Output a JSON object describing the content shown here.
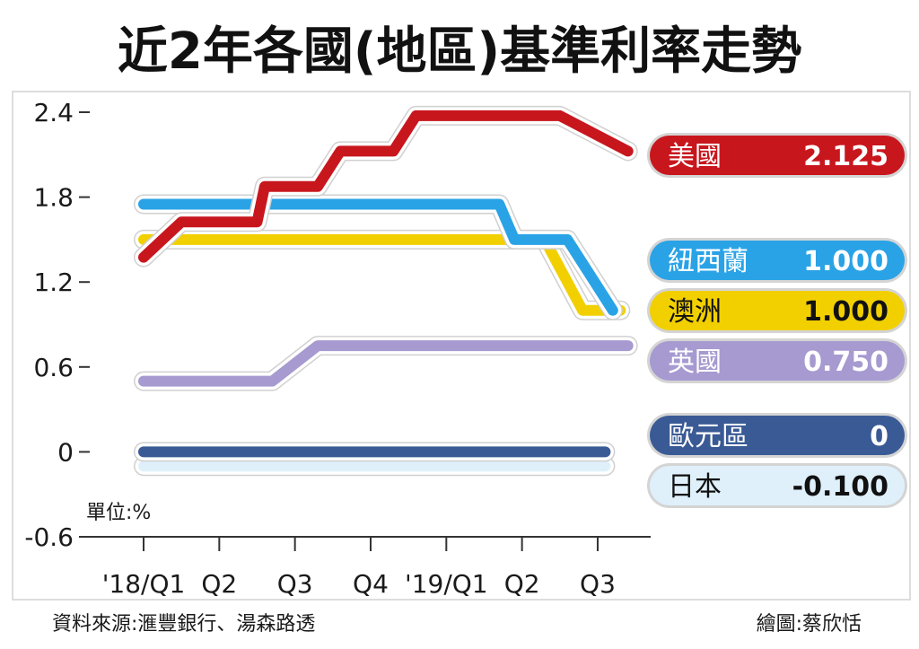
{
  "title": "近2年各國(地區)基準利率走勢",
  "unit_label": "單位:%",
  "source": "資料來源:滙豐銀行、湯森路透",
  "credit": "繪圖:蔡欣恬",
  "chart_data": {
    "type": "line",
    "title": "近2年各國(地區)基準利率走勢",
    "y_ticks": [
      "2.4",
      "1.8",
      "1.2",
      "0.6",
      "0",
      "-0.6"
    ],
    "y_tick_values": [
      2.4,
      1.8,
      1.2,
      0.6,
      0,
      -0.6
    ],
    "ylim": [
      -0.6,
      2.4
    ],
    "x_ticks": [
      "'18/Q1",
      "Q2",
      "Q3",
      "Q4",
      "'19/Q1",
      "Q2",
      "Q3"
    ],
    "x_tick_values": [
      0,
      1,
      2,
      3,
      4,
      5,
      6
    ],
    "xlim": [
      0,
      6.5
    ],
    "grid": false,
    "legend_placement": "right",
    "series": [
      {
        "name": "美國",
        "value_label": "2.125",
        "color": "#c8161d",
        "text_color": "#ffffff",
        "points": [
          [
            0,
            1.375
          ],
          [
            0.5,
            1.625
          ],
          [
            1.5,
            1.625
          ],
          [
            1.6,
            1.875
          ],
          [
            2.3,
            1.875
          ],
          [
            2.6,
            2.125
          ],
          [
            3.3,
            2.125
          ],
          [
            3.6,
            2.375
          ],
          [
            5.5,
            2.375
          ],
          [
            6.4,
            2.125
          ]
        ]
      },
      {
        "name": "紐西蘭",
        "value_label": "1.000",
        "color": "#2aa3e6",
        "text_color": "#ffffff",
        "points": [
          [
            0,
            1.75
          ],
          [
            4.7,
            1.75
          ],
          [
            4.9,
            1.5
          ],
          [
            5.6,
            1.5
          ],
          [
            6.2,
            1.0
          ]
        ]
      },
      {
        "name": "澳洲",
        "value_label": "1.000",
        "color": "#f2d000",
        "text_color": "#111111",
        "points": [
          [
            0,
            1.5
          ],
          [
            5.3,
            1.5
          ],
          [
            5.8,
            1.0
          ],
          [
            6.3,
            1.0
          ]
        ]
      },
      {
        "name": "英國",
        "value_label": "0.750",
        "color": "#a79ad0",
        "text_color": "#ffffff",
        "points": [
          [
            0,
            0.5
          ],
          [
            1.7,
            0.5
          ],
          [
            2.3,
            0.75
          ],
          [
            6.4,
            0.75
          ]
        ]
      },
      {
        "name": "歐元區",
        "value_label": "0",
        "color": "#3a5a95",
        "text_color": "#ffffff",
        "points": [
          [
            0,
            0
          ],
          [
            6.1,
            0
          ]
        ]
      },
      {
        "name": "日本",
        "value_label": "-0.100",
        "color": "#dff0fb",
        "text_color": "#111111",
        "points": [
          [
            0,
            -0.1
          ],
          [
            6.1,
            -0.1
          ]
        ]
      }
    ]
  }
}
